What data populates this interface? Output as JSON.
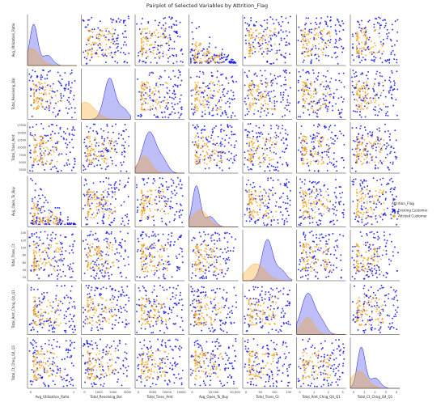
{
  "chart_data": {
    "type": "scatter",
    "title": "Pairplot of Selected Variables by Attrition_Flag",
    "variables": [
      "Avg_Utilization_Ratio",
      "Total_Revolving_Bal",
      "Total_Trans_Amt",
      "Avg_Open_To_Buy",
      "Total_Trans_Ct",
      "Total_Amt_Chng_Q4_Q1",
      "Total_Ct_Chng_Q4_Q1"
    ],
    "axis_ranges": [
      [
        -0.1,
        1.1
      ],
      [
        -250,
        2800
      ],
      [
        -1500,
        19000
      ],
      [
        -3000,
        37000
      ],
      [
        5,
        145
      ],
      [
        -0.3,
        4.2
      ],
      [
        -0.3,
        4.2
      ]
    ],
    "x_tick_labels": [
      [
        "0",
        "1"
      ],
      [
        "0",
        "1000",
        "2000",
        "3000"
      ],
      [
        "0",
        "5000",
        "10000",
        "15000"
      ],
      [
        "0",
        "20,000",
        "40,000"
      ],
      [
        "0",
        "50",
        "100",
        "150"
      ],
      [
        "0",
        "1",
        "2",
        "3"
      ],
      [
        "0",
        "1",
        "2",
        "3",
        "4"
      ]
    ],
    "y_tick_labels": {
      "Total_Trans_Amt": [
        "2500",
        "5000",
        "7500",
        "10000",
        "12500",
        "15000",
        "17500"
      ],
      "Total_Trans_Ct": [
        "20",
        "40",
        "60",
        "80",
        "100",
        "120",
        "140"
      ]
    },
    "legend": {
      "title": "Attrition_Flag",
      "placement": "center-right",
      "entries": [
        "Existing Customer",
        "Attrited Customer"
      ]
    },
    "series": [
      {
        "name": "Existing Customer",
        "color": "#1414e6",
        "density_peaks": [
          0.05,
          1500,
          4500,
          3000,
          75,
          0.75,
          0.7
        ]
      },
      {
        "name": "Attrited Customer",
        "color": "#f5a623",
        "density_peaks": [
          0.0,
          0,
          2300,
          6000,
          42,
          0.7,
          0.5
        ]
      }
    ],
    "diagonal": "kde",
    "off_diagonal": "scatter",
    "grid": false
  }
}
